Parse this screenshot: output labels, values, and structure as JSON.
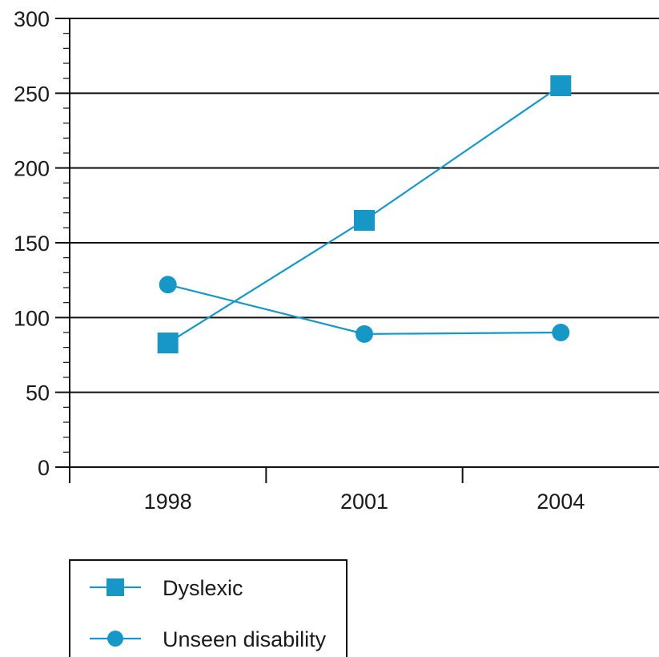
{
  "chart_data": {
    "type": "line",
    "title": "",
    "xlabel": "",
    "ylabel": "",
    "categories": [
      "1998",
      "2001",
      "2004"
    ],
    "ylim": [
      0,
      300
    ],
    "yticks": [
      0,
      50,
      100,
      150,
      200,
      250,
      300
    ],
    "grid": true,
    "legend_position": "bottom-left",
    "series": [
      {
        "name": "Dyslexic",
        "values": [
          83,
          165,
          255
        ],
        "marker": "square",
        "color": "#1797c5"
      },
      {
        "name": "Unseen disability",
        "values": [
          122,
          89,
          90
        ],
        "marker": "circle",
        "color": "#1797c5"
      }
    ]
  }
}
